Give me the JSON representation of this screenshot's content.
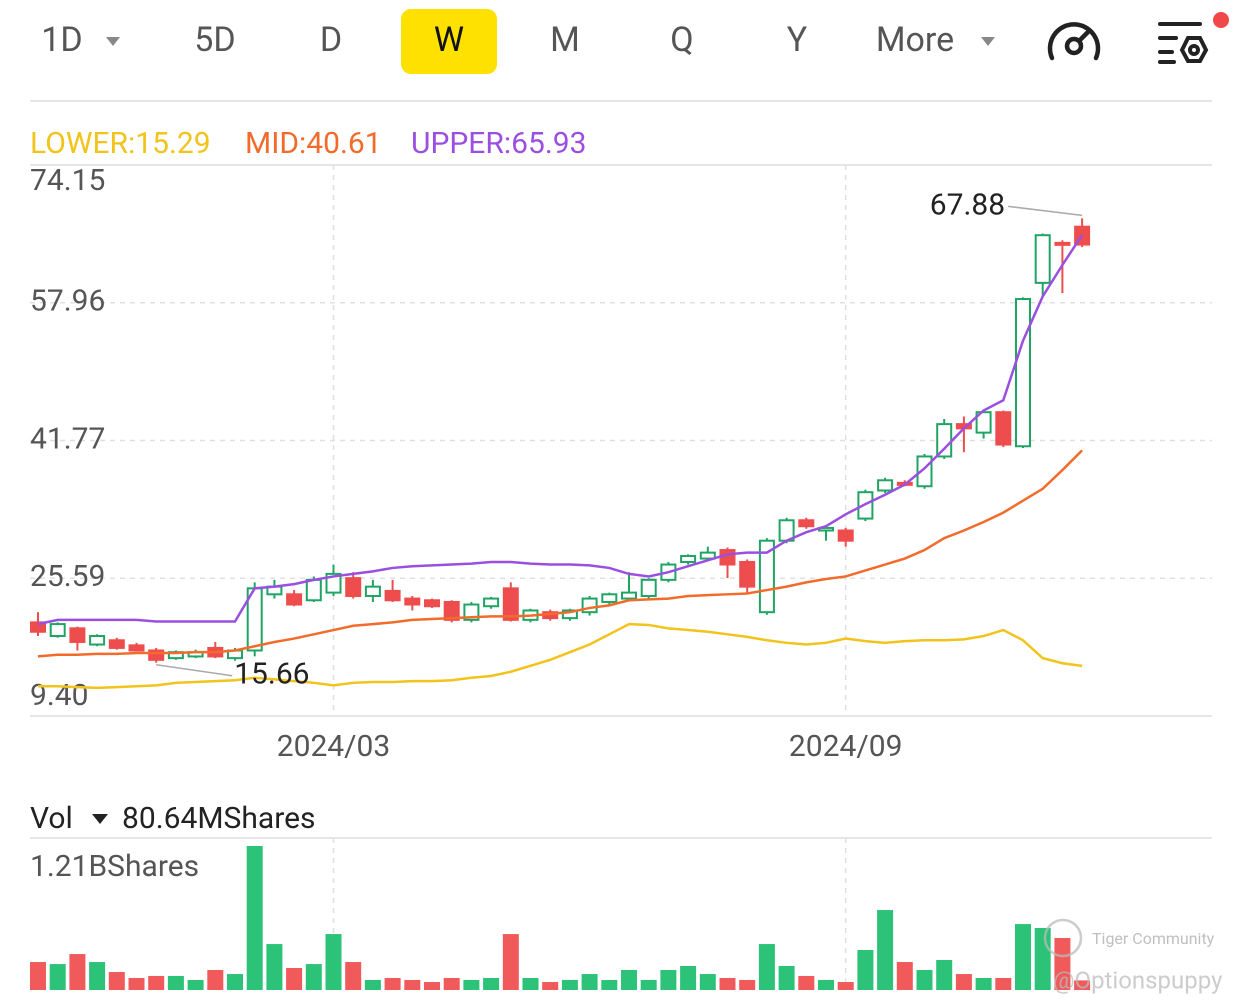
{
  "toolbar": {
    "tabs": [
      "1D",
      "5D",
      "D",
      "W",
      "M",
      "Q",
      "Y",
      "More"
    ],
    "active": "W"
  },
  "chart_data": [
    {
      "type": "candlestick",
      "categories": [
        null,
        null,
        null,
        null,
        null,
        null,
        null,
        null,
        null,
        null,
        null,
        null,
        null,
        null,
        null,
        "2024/03",
        null,
        null,
        null,
        null,
        null,
        null,
        null,
        null,
        null,
        null,
        null,
        null,
        null,
        null,
        null,
        null,
        null,
        null,
        null,
        null,
        null,
        null,
        null,
        null,
        null,
        "2024/09",
        null,
        null,
        null,
        null,
        null,
        null,
        null,
        null,
        null,
        null,
        null,
        null
      ],
      "open": [
        20.4,
        18.8,
        19.7,
        17.8,
        18.3,
        17.7,
        17.1,
        16.2,
        16.4,
        17.4,
        16.2,
        17.1,
        23.7,
        23.7,
        23.0,
        23.9,
        25.6,
        23.5,
        24.1,
        23.2,
        23.0,
        22.8,
        20.7,
        22.3,
        24.4,
        20.7,
        21.6,
        20.9,
        21.6,
        22.8,
        23.2,
        23.5,
        25.4,
        27.5,
        27.9,
        28.9,
        27.5,
        21.6,
        30.0,
        32.4,
        31.2,
        31.2,
        32.6,
        35.9,
        36.8,
        36.4,
        39.9,
        43.7,
        42.7,
        45.1,
        41.1,
        60.3,
        65.0,
        66.9
      ],
      "high": [
        21.6,
        20.4,
        19.9,
        19.0,
        18.6,
        18.0,
        17.4,
        17.1,
        17.2,
        18.1,
        17.4,
        25.1,
        25.4,
        24.2,
        25.8,
        27.2,
        26.3,
        25.4,
        25.4,
        23.5,
        23.2,
        23.0,
        22.8,
        23.4,
        25.1,
        22.0,
        21.9,
        22.0,
        23.5,
        23.9,
        26.3,
        25.6,
        27.5,
        28.4,
        29.3,
        29.2,
        27.8,
        30.3,
        32.7,
        32.7,
        31.7,
        31.5,
        36.0,
        37.4,
        37.1,
        40.2,
        44.3,
        44.6,
        45.4,
        45.3,
        58.6,
        66.1,
        65.3,
        67.88
      ],
      "low": [
        18.8,
        18.6,
        17.1,
        17.6,
        17.2,
        17.0,
        15.66,
        16.0,
        16.2,
        16.2,
        15.9,
        16.4,
        23.2,
        22.3,
        22.8,
        23.5,
        23.2,
        22.8,
        22.8,
        21.8,
        22.1,
        20.4,
        20.4,
        22.0,
        20.5,
        20.4,
        20.6,
        20.6,
        21.2,
        22.5,
        23.0,
        23.2,
        25.1,
        27.2,
        27.6,
        25.6,
        23.9,
        21.3,
        29.7,
        31.4,
        30.0,
        29.3,
        32.3,
        35.6,
        36.4,
        36.1,
        39.6,
        40.4,
        42.0,
        41.0,
        40.9,
        58.7,
        59.1,
        64.5
      ],
      "close": [
        19.3,
        20.2,
        18.1,
        18.8,
        17.4,
        17.1,
        16.0,
        16.9,
        16.9,
        16.4,
        17.1,
        24.4,
        24.6,
        22.5,
        25.4,
        26.1,
        23.5,
        24.6,
        23.0,
        22.5,
        22.3,
        20.7,
        22.5,
        23.2,
        20.7,
        21.8,
        20.9,
        21.8,
        23.2,
        23.7,
        23.9,
        25.4,
        27.2,
        28.2,
        28.6,
        27.2,
        24.6,
        30.0,
        32.4,
        31.7,
        31.5,
        30.0,
        35.7,
        37.1,
        36.6,
        39.9,
        43.7,
        43.2,
        45.1,
        41.3,
        58.4,
        65.9,
        64.8,
        64.8
      ],
      "up_color": "#1fa463",
      "down_color": "#ee4d4d",
      "series": [
        {
          "name": "LOWER:15.29",
          "color": "#f2c31b",
          "values": [
            12.9,
            12.9,
            12.8,
            12.7,
            12.8,
            12.9,
            13.0,
            13.3,
            13.4,
            13.5,
            13.6,
            13.9,
            13.7,
            13.5,
            13.3,
            13.0,
            13.3,
            13.4,
            13.4,
            13.5,
            13.5,
            13.6,
            13.9,
            14.1,
            14.6,
            15.3,
            16.0,
            16.9,
            17.8,
            19.0,
            20.2,
            20.1,
            19.7,
            19.5,
            19.3,
            19.0,
            18.7,
            18.3,
            18.0,
            17.8,
            18.0,
            18.5,
            18.2,
            18.0,
            18.2,
            18.3,
            18.3,
            18.4,
            18.8,
            19.5,
            18.3,
            16.2,
            15.6,
            15.29
          ]
        },
        {
          "name": "MID:40.61",
          "color": "#f26b2a",
          "values": [
            16.4,
            16.6,
            16.6,
            16.7,
            16.7,
            16.8,
            16.8,
            16.8,
            16.9,
            16.9,
            17.1,
            17.6,
            18.1,
            18.5,
            19.0,
            19.5,
            20.0,
            20.2,
            20.4,
            20.7,
            20.8,
            20.9,
            21.0,
            21.1,
            21.1,
            21.2,
            21.4,
            21.6,
            22.1,
            22.4,
            23.0,
            23.1,
            23.2,
            23.5,
            23.6,
            23.7,
            23.8,
            24.2,
            24.6,
            25.1,
            25.5,
            25.8,
            26.5,
            27.2,
            27.9,
            28.9,
            30.3,
            31.2,
            32.2,
            33.3,
            34.7,
            36.1,
            38.3,
            40.61
          ]
        },
        {
          "name": "UPPER:65.93",
          "color": "#9b4fe0",
          "values": [
            20.2,
            20.7,
            20.7,
            20.7,
            20.7,
            20.7,
            20.5,
            20.5,
            20.5,
            20.5,
            20.5,
            24.4,
            24.6,
            24.9,
            25.4,
            25.8,
            26.1,
            26.4,
            26.8,
            27.0,
            27.1,
            27.2,
            27.3,
            27.5,
            27.5,
            27.3,
            27.2,
            27.2,
            27.1,
            26.8,
            26.1,
            25.8,
            26.3,
            27.0,
            27.7,
            28.4,
            28.6,
            28.6,
            30.0,
            31.0,
            31.7,
            33.1,
            34.3,
            35.4,
            36.6,
            38.5,
            40.8,
            43.2,
            45.3,
            46.5,
            53.5,
            58.7,
            62.4,
            65.93
          ]
        }
      ],
      "ylim": [
        9.4,
        74.15
      ],
      "yticks": [
        {
          "value": 9.4,
          "label": "9.40"
        },
        25.59,
        41.77,
        57.96,
        74.15
      ],
      "annotations": [
        67.88,
        15.66
      ],
      "grid": true
    },
    {
      "type": "bar",
      "title": "Vol",
      "subtitle": "80.64MShares",
      "values": [
        235,
        218,
        302,
        235,
        151,
        101,
        118,
        118,
        84,
        168,
        134,
        1210,
        386,
        185,
        218,
        470,
        235,
        84,
        101,
        84,
        67,
        101,
        84,
        101,
        470,
        101,
        67,
        84,
        134,
        84,
        168,
        84,
        168,
        202,
        134,
        101,
        84,
        386,
        202,
        118,
        84,
        67,
        336,
        672,
        235,
        168,
        252,
        134,
        101,
        101,
        554,
        521,
        437,
        80.64
      ],
      "ylim": [
        0,
        1210
      ],
      "yticks": [
        {
          "value": 1210,
          "label": "1.21BShares"
        }
      ]
    }
  ],
  "watermark": {
    "brand": "Tiger Community",
    "handle": "@Optionspuppy"
  }
}
